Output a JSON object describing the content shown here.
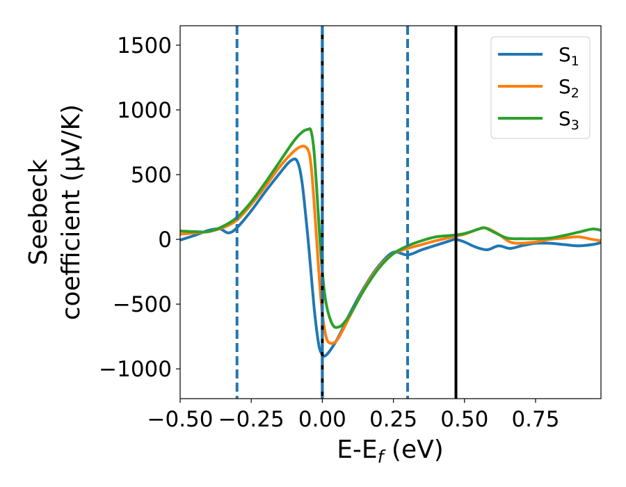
{
  "chart_data": {
    "type": "line",
    "title": "",
    "xlabel_parts": [
      "E-E",
      "f",
      " (eV)"
    ],
    "ylabel_lines": [
      "Seebeck",
      "coefficient  (μV/K)"
    ],
    "xlim": [
      -0.5,
      0.98
    ],
    "ylim": [
      -1230,
      1650
    ],
    "xticks": [
      -0.5,
      -0.25,
      0.0,
      0.25,
      0.5,
      0.75
    ],
    "xtick_labels": [
      "−0.50",
      "−0.25",
      "0.00",
      "0.25",
      "0.50",
      "0.75"
    ],
    "yticks": [
      -1000,
      -500,
      0,
      500,
      1000,
      1500
    ],
    "ytick_labels": [
      "−1000",
      "−500",
      "0",
      "500",
      "1000",
      "1500"
    ],
    "grid": false,
    "legend_position": "top-right",
    "series": [
      {
        "name_base": "S",
        "name_sub": "1",
        "color": "#1f77b4",
        "x": [
          -0.5,
          -0.45,
          -0.4,
          -0.36,
          -0.33,
          -0.3,
          -0.25,
          -0.2,
          -0.15,
          -0.12,
          -0.1,
          -0.09,
          -0.08,
          -0.07,
          -0.06,
          -0.05,
          -0.04,
          -0.03,
          -0.02,
          -0.01,
          0.0,
          0.01,
          0.03,
          0.06,
          0.1,
          0.15,
          0.2,
          0.25,
          0.3,
          0.35,
          0.4,
          0.45,
          0.47,
          0.5,
          0.54,
          0.58,
          0.62,
          0.66,
          0.7,
          0.75,
          0.8,
          0.85,
          0.9,
          0.95,
          0.98
        ],
        "y": [
          -5,
          30,
          70,
          80,
          50,
          90,
          220,
          370,
          510,
          590,
          620,
          610,
          550,
          420,
          220,
          0,
          -250,
          -500,
          -700,
          -840,
          -890,
          -900,
          -850,
          -740,
          -560,
          -360,
          -200,
          -100,
          -120,
          -80,
          -45,
          -10,
          0,
          -20,
          -60,
          -80,
          -50,
          -70,
          -50,
          -30,
          -30,
          -40,
          -50,
          -40,
          -25
        ]
      },
      {
        "name_base": "S",
        "name_sub": "2",
        "color": "#ff7f0e",
        "x": [
          -0.5,
          -0.45,
          -0.4,
          -0.35,
          -0.3,
          -0.25,
          -0.2,
          -0.15,
          -0.1,
          -0.07,
          -0.05,
          -0.04,
          -0.03,
          -0.02,
          -0.01,
          0.0,
          0.01,
          0.02,
          0.04,
          0.06,
          0.1,
          0.15,
          0.2,
          0.25,
          0.3,
          0.35,
          0.4,
          0.45,
          0.5,
          0.55,
          0.58,
          0.62,
          0.66,
          0.7,
          0.75,
          0.8,
          0.85,
          0.9,
          0.95,
          0.98
        ],
        "y": [
          40,
          50,
          60,
          90,
          150,
          270,
          410,
          560,
          680,
          720,
          690,
          580,
          320,
          0,
          -320,
          -570,
          -720,
          -790,
          -800,
          -750,
          -580,
          -370,
          -210,
          -110,
          -70,
          -40,
          -10,
          15,
          40,
          80,
          85,
          40,
          -20,
          -30,
          -20,
          0,
          10,
          20,
          0,
          -10
        ]
      },
      {
        "name_base": "S",
        "name_sub": "3",
        "color": "#2ca02c",
        "x": [
          -0.5,
          -0.45,
          -0.4,
          -0.35,
          -0.3,
          -0.25,
          -0.2,
          -0.15,
          -0.1,
          -0.07,
          -0.05,
          -0.04,
          -0.03,
          -0.02,
          -0.01,
          0.0,
          0.01,
          0.02,
          0.03,
          0.04,
          0.05,
          0.07,
          0.1,
          0.15,
          0.2,
          0.25,
          0.3,
          0.35,
          0.4,
          0.45,
          0.5,
          0.55,
          0.57,
          0.6,
          0.65,
          0.7,
          0.75,
          0.8,
          0.85,
          0.9,
          0.95,
          0.98
        ],
        "y": [
          65,
          60,
          60,
          100,
          170,
          290,
          440,
          600,
          760,
          830,
          850,
          840,
          700,
          400,
          50,
          -250,
          -450,
          -560,
          -630,
          -670,
          -680,
          -660,
          -570,
          -380,
          -220,
          -110,
          -50,
          -10,
          20,
          30,
          45,
          80,
          90,
          60,
          10,
          5,
          5,
          10,
          30,
          55,
          80,
          70
        ]
      }
    ],
    "vlines": [
      {
        "x": -0.3,
        "style": "dashed",
        "color": "#1f77b4"
      },
      {
        "x": 0.0,
        "style": "solid",
        "color": "#000000"
      },
      {
        "x": 0.0,
        "style": "dashed",
        "color": "#1f77b4"
      },
      {
        "x": 0.3,
        "style": "dashed",
        "color": "#1f77b4"
      },
      {
        "x": 0.47,
        "style": "solid",
        "color": "#000000"
      }
    ]
  }
}
